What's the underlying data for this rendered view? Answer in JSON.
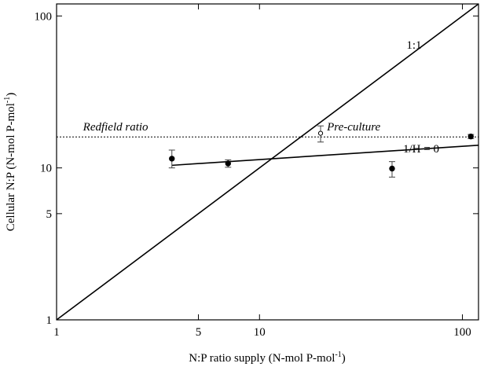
{
  "chart_data": {
    "type": "scatter",
    "xlabel": "N:P ratio supply (N-mol P-mol",
    "xlabel_sup": "-1",
    "xlabel_tail": ")",
    "ylabel": "Cellular N:P (N-mol P-mol",
    "ylabel_sup": "-1",
    "ylabel_tail": ")",
    "xscale": "log",
    "yscale": "log",
    "xlim": [
      1,
      120
    ],
    "ylim": [
      1,
      120
    ],
    "x_ticks": [
      {
        "value": 1,
        "label": "1"
      },
      {
        "value": 5,
        "label": "5"
      },
      {
        "value": 10,
        "label": "10"
      },
      {
        "value": 100,
        "label": "100"
      }
    ],
    "y_ticks": [
      {
        "value": 1,
        "label": "1"
      },
      {
        "value": 5,
        "label": "5"
      },
      {
        "value": 10,
        "label": "10"
      },
      {
        "value": 100,
        "label": "100"
      }
    ],
    "grid": false,
    "series": [
      {
        "marker": "filled-circle",
        "color": "#000000",
        "points": [
          {
            "x": 3.7,
            "y": 11.5,
            "err_low": 10.0,
            "err_high": 13.1
          },
          {
            "x": 7.0,
            "y": 10.7,
            "err_low": 10.1,
            "err_high": 11.3
          },
          {
            "x": 45,
            "y": 9.9,
            "err_low": 8.7,
            "err_high": 11.0
          },
          {
            "x": 110,
            "y": 16.1,
            "err_low": 15.6,
            "err_high": 16.6
          }
        ]
      },
      {
        "marker": "open-circle",
        "color": "#000000",
        "points": [
          {
            "x": 20,
            "y": 16.9,
            "err_low": 14.8,
            "err_high": 18.9
          }
        ]
      }
    ],
    "lines": [
      {
        "kind": "one-to-one",
        "label": "1:1",
        "from": [
          1,
          1
        ],
        "to": [
          120,
          120
        ],
        "style": "solid"
      },
      {
        "kind": "fit",
        "label": "1/H = 0",
        "from": [
          3.7,
          10.4
        ],
        "to": [
          120,
          14.1
        ],
        "style": "solid"
      },
      {
        "kind": "reference",
        "label": "Redfield ratio",
        "y": 16,
        "style": "dotted"
      }
    ],
    "annotations": [
      {
        "text": "Redfield ratio",
        "italic": true,
        "x": 1.35,
        "y": 17.6
      },
      {
        "text": "Pre-culture",
        "italic": true,
        "x": 21.5,
        "y": 17.6
      },
      {
        "text": "1:1",
        "italic": false,
        "x": 53,
        "y": 61
      },
      {
        "text": "1/H = 0",
        "italic": false,
        "x": 51,
        "y": 12.6
      }
    ]
  }
}
